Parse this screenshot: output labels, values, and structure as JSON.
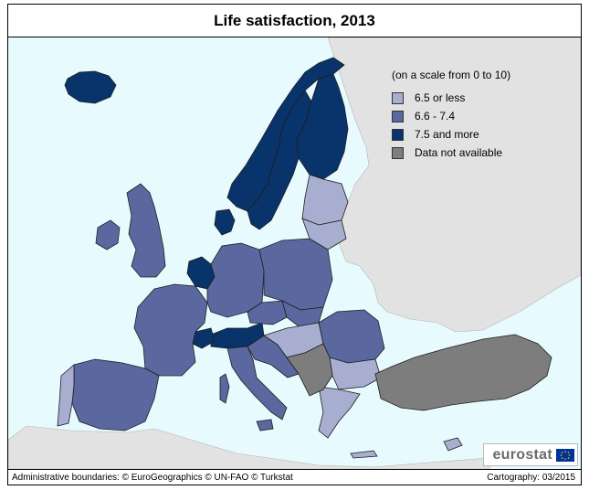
{
  "title": "Life satisfaction, 2013",
  "legend": {
    "note": "(on a scale from 0 to 10)",
    "classes": [
      {
        "label": "6.5 or less",
        "color": "#a8aed0"
      },
      {
        "label": "6.6 - 7.4",
        "color": "#5a689f"
      },
      {
        "label": "7.5 and more",
        "color": "#09336b"
      },
      {
        "label": "Data not available",
        "color": "#7d7d7d"
      }
    ]
  },
  "colors": {
    "sea": "#e7fbff",
    "non_member_land": "#e2e2e2",
    "country_border": "#1e1e1e"
  },
  "logo": {
    "text": "eurostat",
    "flag_icon": "eu-flag-icon"
  },
  "footer": {
    "credits": "Administrative boundaries: © EuroGeographics © UN-FAO © Turkstat",
    "cartography": "Cartography: 03/2015"
  }
}
